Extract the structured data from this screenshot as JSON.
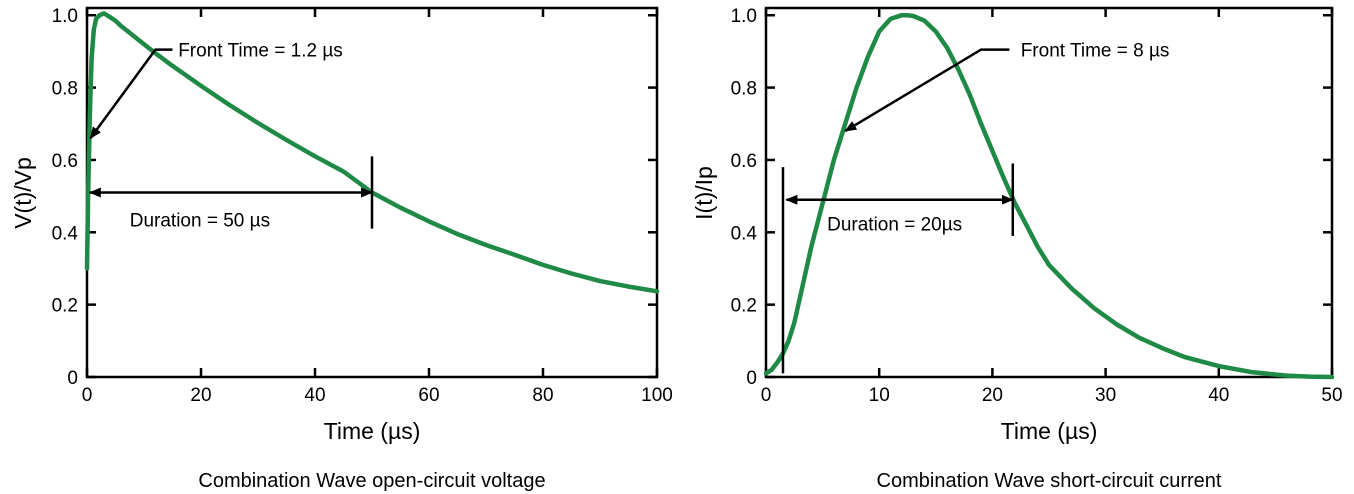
{
  "chart_data": [
    {
      "type": "line",
      "caption": "Combination Wave open-circuit voltage",
      "xlabel": "Time (µs)",
      "ylabel": "V(t)/Vp",
      "xlim": [
        0,
        100
      ],
      "ylim": [
        0,
        1.02
      ],
      "xticks": [
        0,
        20,
        40,
        60,
        80,
        100
      ],
      "xtick_labels": [
        "0",
        "20",
        "40",
        "60",
        "80",
        "100"
      ],
      "yticks": [
        0,
        0.2,
        0.4,
        0.6,
        0.8,
        1.0
      ],
      "ytick_labels": [
        "0",
        "0.2",
        "0.4",
        "0.6",
        "0.8",
        "1.0"
      ],
      "grid": false,
      "line_color": "#1e8a46",
      "series": [
        {
          "x": [
            0,
            0.2,
            0.5,
            0.8,
            1.2,
            1.6,
            2.2,
            3.0,
            4.0,
            5.0,
            6.0,
            8.0,
            10.0,
            12.0,
            15.0,
            20.0,
            25.0,
            30.0,
            35.0,
            40.0,
            45.0,
            50.0,
            55.0,
            60.0,
            65.0,
            70.0,
            75.0,
            80.0,
            85.0,
            90.0,
            95.0,
            100.0
          ],
          "values": [
            0.3,
            0.5,
            0.72,
            0.88,
            0.96,
            0.99,
            1.0,
            1.005,
            0.995,
            0.985,
            0.97,
            0.945,
            0.92,
            0.895,
            0.86,
            0.805,
            0.752,
            0.702,
            0.655,
            0.61,
            0.568,
            0.51,
            0.468,
            0.43,
            0.395,
            0.365,
            0.338,
            0.31,
            0.286,
            0.265,
            0.25,
            0.237
          ]
        }
      ],
      "annotations": [
        {
          "text": "Front Time = 1.2 µs",
          "arrow_tip": [
            0.6,
            0.66
          ],
          "elbow": [
            12,
            0.905
          ],
          "label_at": [
            16,
            0.905
          ]
        },
        {
          "text": "Duration = 50 µs",
          "from": [
            0.5,
            0.51
          ],
          "to": [
            50,
            0.51
          ],
          "marker_x": 50,
          "marker_y_range": [
            0.41,
            0.61
          ],
          "label_at": [
            7.5,
            0.435
          ]
        }
      ]
    },
    {
      "type": "line",
      "caption": "Combination Wave short-circuit current",
      "xlabel": "Time (µs)",
      "ylabel": "I(t)/Ip",
      "xlim": [
        0,
        50
      ],
      "ylim": [
        0,
        1.02
      ],
      "xticks": [
        0,
        10,
        20,
        30,
        40,
        50
      ],
      "xtick_labels": [
        "0",
        "10",
        "20",
        "30",
        "40",
        "50"
      ],
      "yticks": [
        0,
        0.2,
        0.4,
        0.6,
        0.8,
        1.0
      ],
      "ytick_labels": [
        "0",
        "0.2",
        "0.4",
        "0.6",
        "0.8",
        "1.0"
      ],
      "grid": false,
      "line_color": "#1e8a46",
      "series": [
        {
          "x": [
            0,
            0.5,
            1.0,
            1.5,
            2.0,
            2.5,
            3.0,
            4.0,
            5.0,
            6.0,
            7.0,
            8.0,
            9.0,
            10.0,
            11.0,
            12.0,
            12.5,
            13.0,
            14.0,
            15.0,
            16.0,
            17.0,
            18.0,
            19.0,
            20.0,
            21.0,
            22.0,
            23.0,
            24.0,
            25.0,
            27.0,
            29.0,
            31.0,
            33.0,
            35.0,
            37.0,
            40.0,
            43.0,
            46.0,
            48.0,
            50.0
          ],
          "values": [
            0.01,
            0.02,
            0.04,
            0.065,
            0.1,
            0.15,
            0.22,
            0.36,
            0.48,
            0.6,
            0.7,
            0.8,
            0.885,
            0.955,
            0.99,
            1.0,
            1.0,
            0.998,
            0.985,
            0.955,
            0.91,
            0.85,
            0.78,
            0.7,
            0.625,
            0.55,
            0.48,
            0.42,
            0.36,
            0.31,
            0.245,
            0.19,
            0.145,
            0.108,
            0.08,
            0.055,
            0.03,
            0.013,
            0.004,
            0.001,
            0.0
          ]
        }
      ],
      "annotations": [
        {
          "text": "Front Time = 8 µs",
          "arrow_tip": [
            7,
            0.68
          ],
          "elbow": [
            19,
            0.905
          ],
          "label_at": [
            22.5,
            0.905
          ]
        },
        {
          "text": "Duration = 20µs",
          "from": [
            1.8,
            0.49
          ],
          "to": [
            21.8,
            0.49
          ],
          "marker_x": 21.8,
          "marker_y_range": [
            0.39,
            0.59
          ],
          "left_marker_x": 1.5,
          "left_marker_y_range": [
            0.01,
            0.58
          ],
          "label_at": [
            5.4,
            0.425
          ]
        }
      ]
    }
  ]
}
